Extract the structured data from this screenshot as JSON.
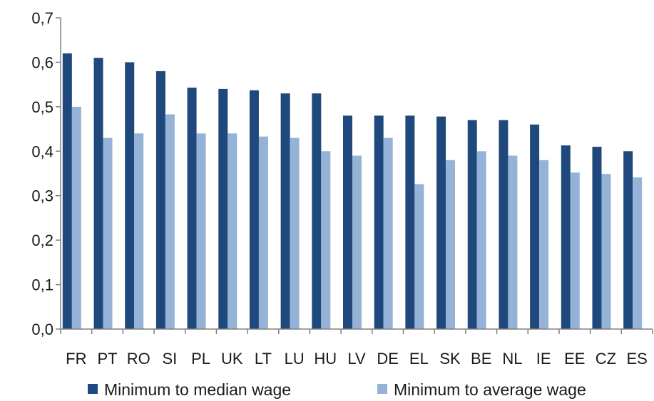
{
  "chart_data": {
    "type": "bar",
    "categories": [
      "FR",
      "PT",
      "RO",
      "SI",
      "PL",
      "UK",
      "LT",
      "LU",
      "HU",
      "LV",
      "DE",
      "EL",
      "SK",
      "BE",
      "NL",
      "IE",
      "EE",
      "CZ",
      "ES"
    ],
    "series": [
      {
        "name": "Minimum to median wage",
        "color": "#1f497d",
        "values": [
          0.62,
          0.61,
          0.6,
          0.58,
          0.543,
          0.54,
          0.537,
          0.53,
          0.53,
          0.48,
          0.48,
          0.48,
          0.478,
          0.47,
          0.47,
          0.46,
          0.413,
          0.41,
          0.4
        ]
      },
      {
        "name": "Minimum to average wage",
        "color": "#95b3d7",
        "values": [
          0.5,
          0.43,
          0.44,
          0.483,
          0.44,
          0.44,
          0.433,
          0.43,
          0.4,
          0.39,
          0.43,
          0.326,
          0.38,
          0.4,
          0.39,
          0.38,
          0.352,
          0.349,
          0.341
        ]
      }
    ],
    "yticks": [
      "0,0",
      "0,1",
      "0,2",
      "0,3",
      "0,4",
      "0,5",
      "0,6",
      "0,7"
    ],
    "ylim": [
      0,
      0.7
    ],
    "grid": false,
    "legend": "bottom",
    "title": "",
    "xlabel": "",
    "ylabel": ""
  }
}
